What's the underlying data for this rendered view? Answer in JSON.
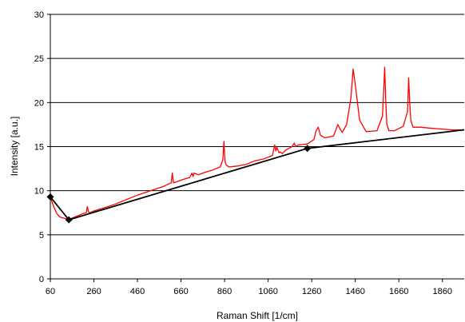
{
  "chart_data": {
    "type": "line",
    "title": "",
    "xlabel": "Raman Shift [1/cm]",
    "ylabel": "Intensity [a.u.]",
    "xlim": [
      60,
      1960
    ],
    "ylim": [
      0,
      30
    ],
    "x_ticks": [
      60,
      260,
      460,
      660,
      860,
      1060,
      1260,
      1460,
      1660,
      1860
    ],
    "y_ticks": [
      0,
      5,
      10,
      15,
      20,
      25,
      30
    ],
    "grid": "horizontal",
    "legend": "none",
    "colors": {
      "spectrum": "#ff0000",
      "baseline": "#000000",
      "gridline": "#000000"
    },
    "series": [
      {
        "x": [
          60,
          75,
          90,
          105,
          120,
          135,
          150,
          170,
          190,
          210,
          225,
          230,
          235,
          240,
          260,
          300,
          350,
          400,
          460,
          520,
          580,
          615,
          620,
          625,
          640,
          660,
          700,
          710,
          715,
          720,
          740,
          760,
          800,
          840,
          852,
          857,
          860,
          863,
          868,
          880,
          920,
          960,
          1000,
          1040,
          1080,
          1090,
          1095,
          1100,
          1110,
          1115,
          1125,
          1140,
          1170,
          1180,
          1185,
          1200,
          1240,
          1270,
          1280,
          1290,
          1300,
          1320,
          1360,
          1380,
          1390,
          1400,
          1420,
          1440,
          1450,
          1460,
          1480,
          1510,
          1560,
          1585,
          1595,
          1600,
          1605,
          1615,
          1640,
          1680,
          1700,
          1705,
          1710,
          1715,
          1725,
          1760,
          1800,
          1850,
          1900,
          1960
        ],
        "y": [
          9.3,
          8.2,
          7.4,
          7.0,
          6.9,
          6.8,
          6.8,
          7.0,
          7.2,
          7.4,
          7.5,
          8.2,
          7.6,
          7.5,
          7.7,
          8.0,
          8.4,
          8.9,
          9.5,
          10.0,
          10.5,
          10.9,
          12.0,
          10.9,
          11.0,
          11.2,
          11.5,
          12.0,
          11.6,
          12.0,
          11.8,
          12.0,
          12.3,
          12.7,
          13.5,
          15.6,
          14.2,
          13.2,
          12.9,
          12.7,
          12.8,
          13.0,
          13.4,
          13.6,
          14.0,
          15.2,
          14.5,
          14.9,
          14.3,
          14.4,
          14.2,
          14.6,
          15.0,
          15.4,
          15.0,
          15.2,
          15.3,
          15.8,
          16.8,
          17.2,
          16.3,
          16.0,
          16.2,
          17.5,
          17.0,
          16.6,
          17.5,
          20.5,
          23.8,
          22.0,
          18.0,
          16.7,
          16.8,
          18.5,
          24.0,
          20.0,
          17.5,
          16.8,
          16.8,
          17.3,
          19.0,
          22.8,
          20.0,
          18.0,
          17.2,
          17.2,
          17.1,
          17.0,
          16.9,
          16.9
        ]
      },
      {
        "x": [
          60,
          145,
          1240,
          1960
        ],
        "y": [
          9.3,
          6.7,
          14.8,
          16.9
        ]
      }
    ]
  }
}
